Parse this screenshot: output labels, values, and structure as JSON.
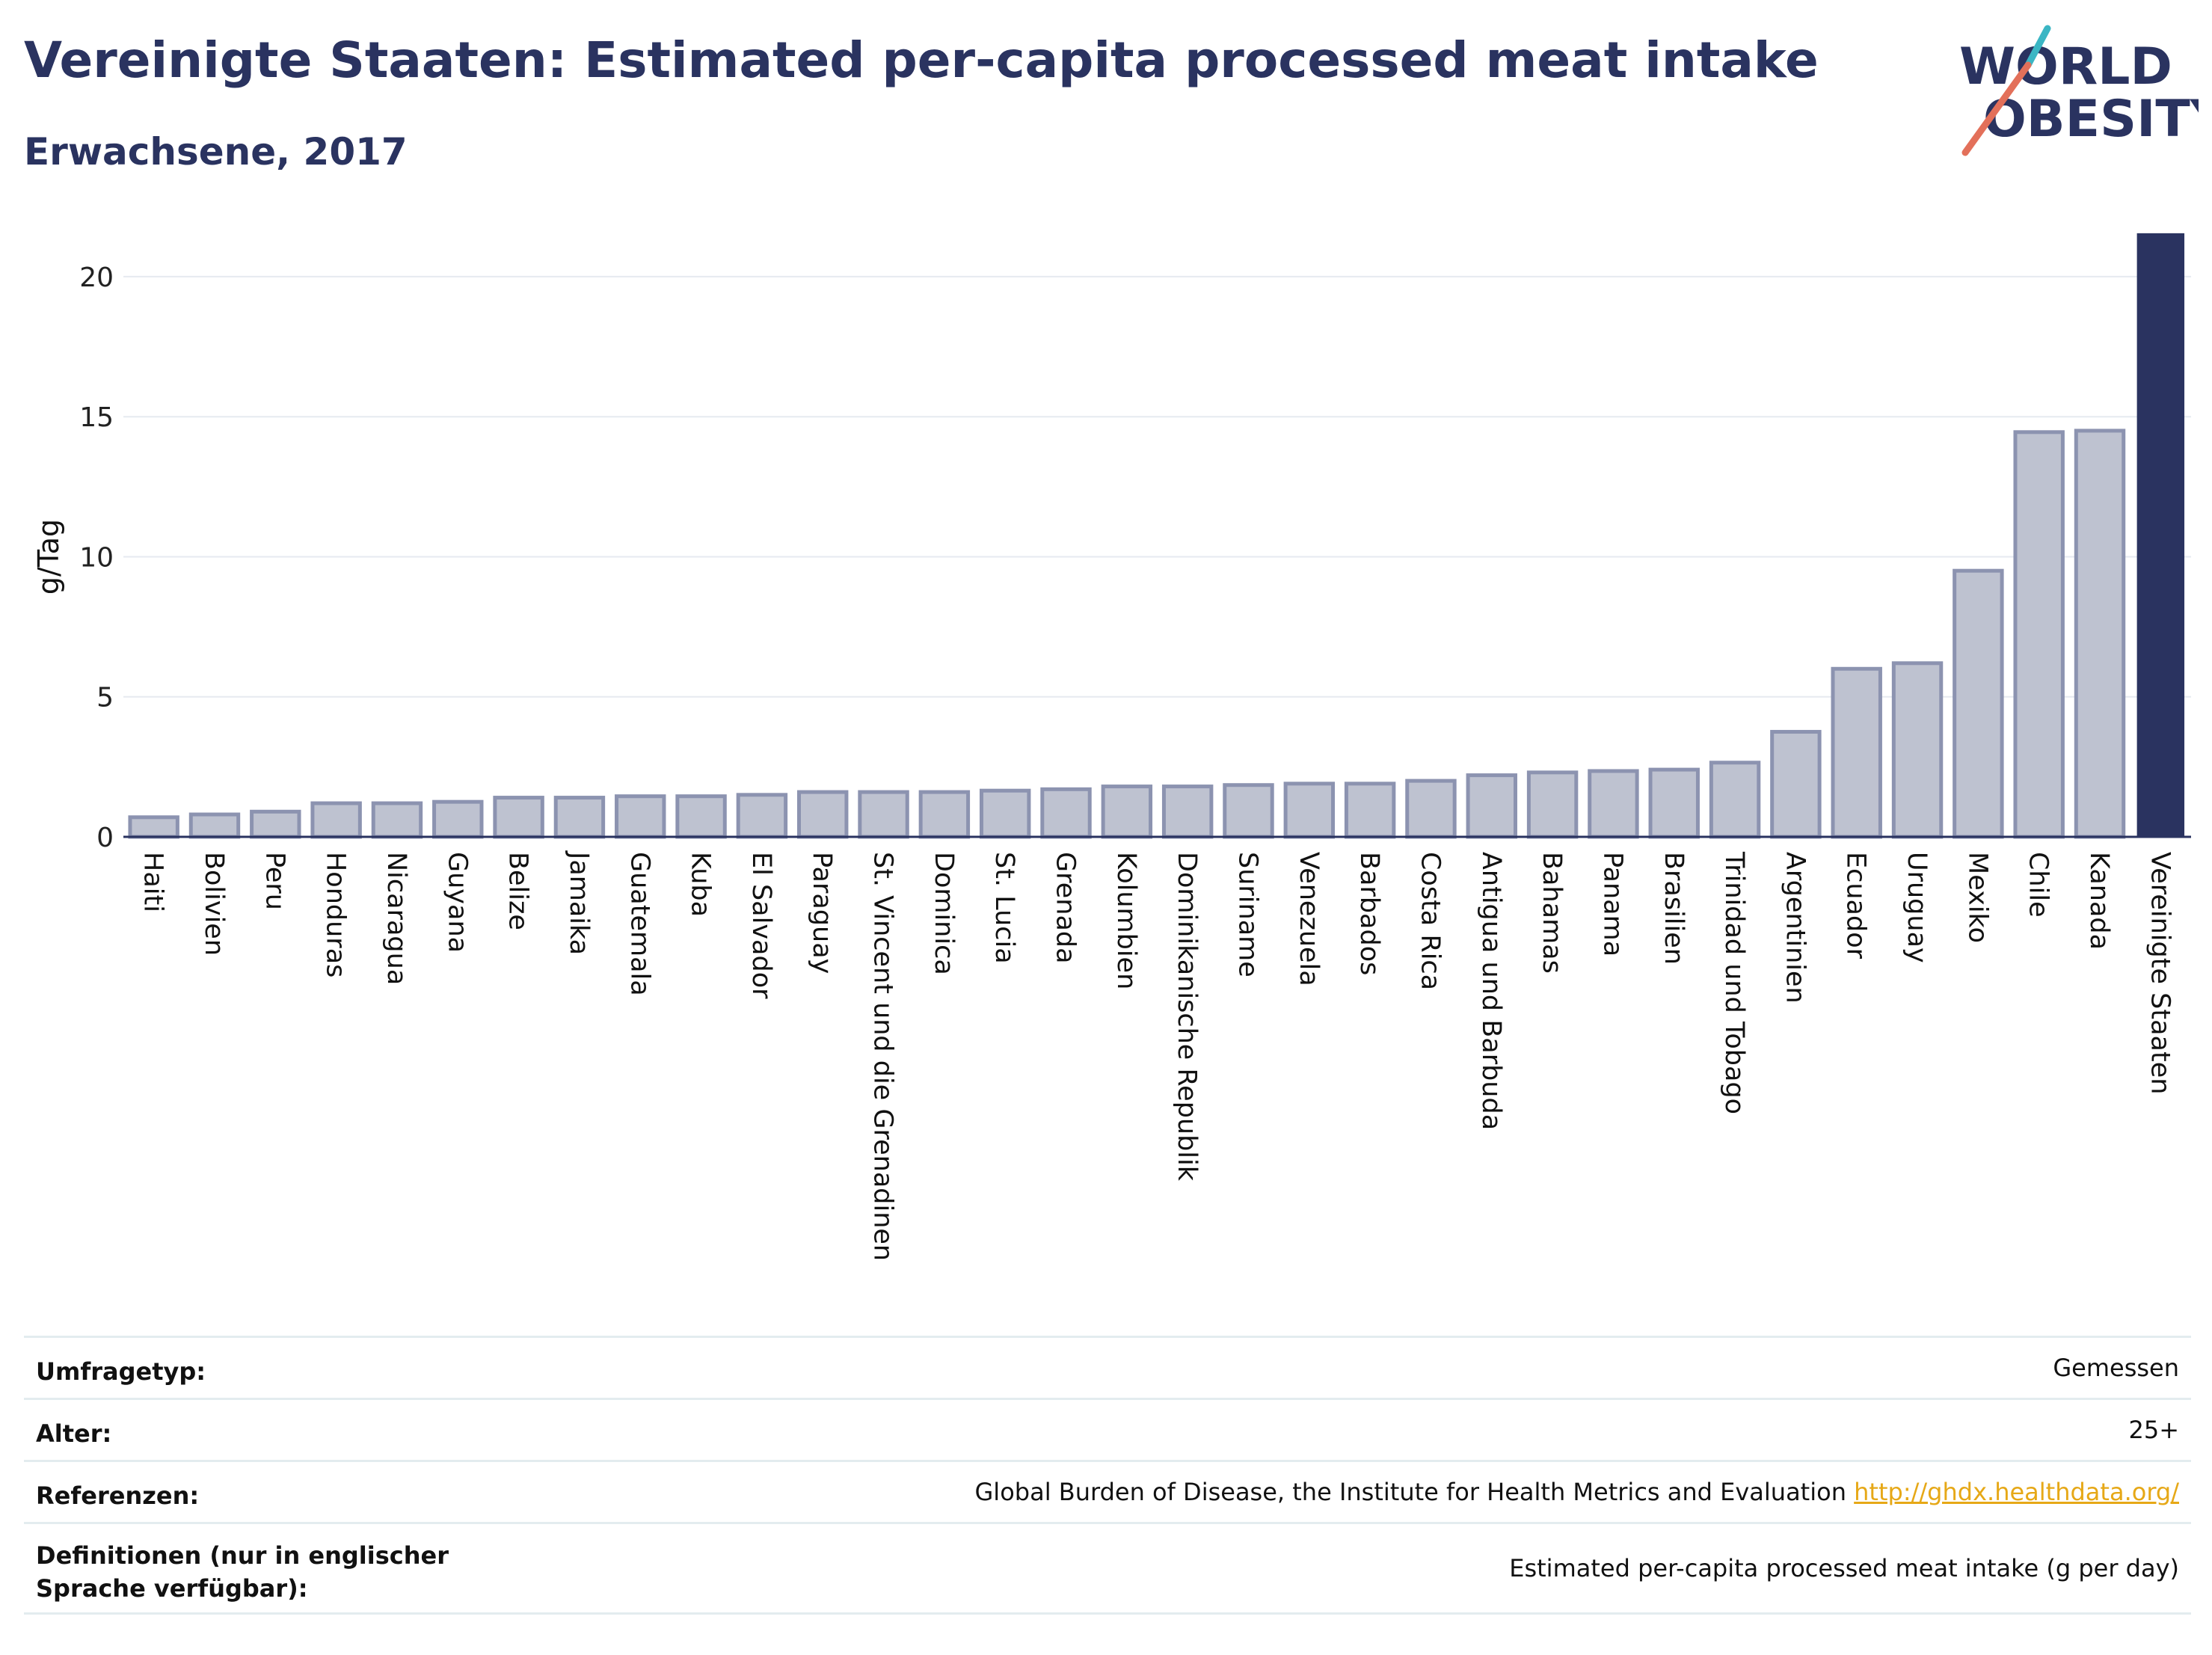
{
  "header": {
    "title": "Vereinigte Staaten: Estimated per-capita processed meat intake",
    "subtitle": "Erwachsene, 2017"
  },
  "logo": {
    "line1": "WORLD",
    "line2": "OBESITY"
  },
  "colors": {
    "title": "#2a3360",
    "bar_fill": "#bec2d0",
    "bar_stroke": "#8c93b0",
    "highlight": "#2a3360",
    "link": "#e6a817",
    "logo_teal": "#3bb6c4",
    "logo_coral": "#e3705a"
  },
  "chart_data": {
    "type": "bar",
    "ylabel": "g/Tag",
    "ylim": [
      0,
      21.6
    ],
    "yticks": [
      0,
      5,
      10,
      15,
      20
    ],
    "grid": true,
    "highlight": "Vereinigte Staaten",
    "categories": [
      "Haiti",
      "Bolivien",
      "Peru",
      "Honduras",
      "Nicaragua",
      "Guyana",
      "Belize",
      "Jamaika",
      "Guatemala",
      "Kuba",
      "El Salvador",
      "Paraguay",
      "St. Vincent und die Grenadinen",
      "Dominica",
      "St. Lucia",
      "Grenada",
      "Kolumbien",
      "Dominikanische Republik",
      "Suriname",
      "Venezuela",
      "Barbados",
      "Costa Rica",
      "Antigua und Barbuda",
      "Bahamas",
      "Panama",
      "Brasilien",
      "Trinidad und Tobago",
      "Argentinien",
      "Ecuador",
      "Uruguay",
      "Mexiko",
      "Chile",
      "Kanada",
      "Vereinigte Staaten"
    ],
    "values": [
      0.7,
      0.8,
      0.9,
      1.2,
      1.2,
      1.25,
      1.4,
      1.4,
      1.45,
      1.45,
      1.5,
      1.6,
      1.6,
      1.6,
      1.65,
      1.7,
      1.8,
      1.8,
      1.85,
      1.9,
      1.9,
      2.0,
      2.2,
      2.3,
      2.35,
      2.4,
      2.65,
      3.75,
      6.0,
      6.2,
      9.5,
      14.45,
      14.5,
      21.55
    ]
  },
  "info": {
    "rows": [
      {
        "label": "Umfragetyp:",
        "value": "Gemessen"
      },
      {
        "label": "Alter:",
        "value": "25+"
      },
      {
        "label": "Referenzen:",
        "value": "Global Burden of Disease, the Institute for Health Metrics and Evaluation",
        "link": "http://ghdx.healthdata.org/"
      },
      {
        "label": "Definitionen (nur in englischer Sprache verfügbar):",
        "value": "Estimated per-capita processed meat intake (g per day)"
      }
    ]
  }
}
